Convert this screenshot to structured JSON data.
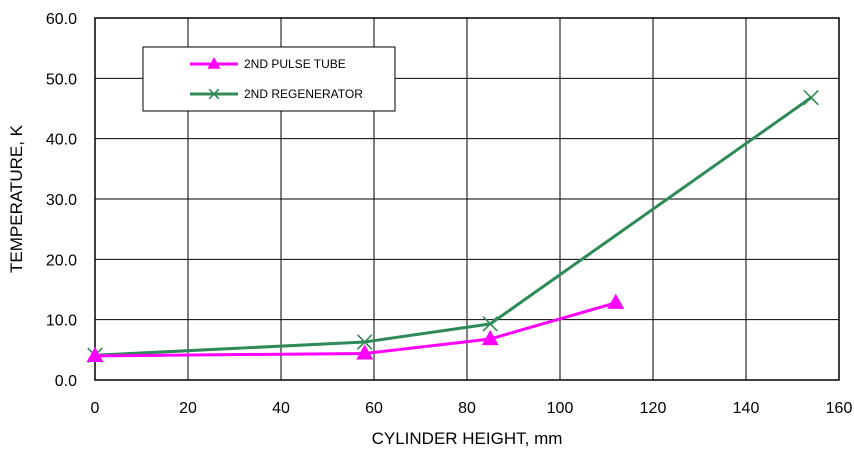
{
  "chart_data": {
    "type": "line",
    "title": "",
    "xlabel": "CYLINDER HEIGHT, mm",
    "ylabel": "TEMPERATURE, K",
    "xlim": [
      0,
      160
    ],
    "ylim": [
      0,
      60
    ],
    "xticks": [
      "0",
      "20",
      "40",
      "60",
      "80",
      "100",
      "120",
      "140",
      "160"
    ],
    "yticks": [
      "0.0",
      "10.0",
      "20.0",
      "30.0",
      "40.0",
      "50.0",
      "60.0"
    ],
    "grid": true,
    "legend_position": "top-left",
    "series": [
      {
        "name": "2ND PULSE TUBE",
        "color": "#ff00ff",
        "marker": "triangle",
        "points": [
          {
            "x": 0,
            "y": 4.0
          },
          {
            "x": 58,
            "y": 4.4
          },
          {
            "x": 85,
            "y": 6.8
          },
          {
            "x": 112,
            "y": 12.8
          }
        ]
      },
      {
        "name": "2ND REGENERATOR",
        "color": "#2e8b57",
        "marker": "x",
        "points": [
          {
            "x": 0,
            "y": 4.1
          },
          {
            "x": 58,
            "y": 6.3
          },
          {
            "x": 85,
            "y": 9.3
          },
          {
            "x": 154,
            "y": 46.8
          }
        ]
      }
    ]
  }
}
